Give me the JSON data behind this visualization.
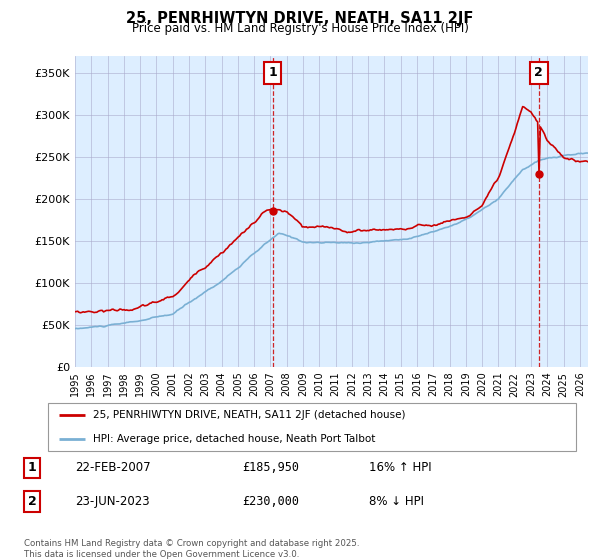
{
  "title": "25, PENRHIWTYN DRIVE, NEATH, SA11 2JF",
  "subtitle": "Price paid vs. HM Land Registry's House Price Index (HPI)",
  "ylabel_ticks": [
    "£0",
    "£50K",
    "£100K",
    "£150K",
    "£200K",
    "£250K",
    "£300K",
    "£350K"
  ],
  "ytick_vals": [
    0,
    50000,
    100000,
    150000,
    200000,
    250000,
    300000,
    350000
  ],
  "ylim": [
    0,
    370000
  ],
  "xlim_start": 1995.0,
  "xlim_end": 2026.5,
  "transaction1": {
    "date_num": 2007.13,
    "price": 185950,
    "label": "1",
    "pct": "16%",
    "dir": "↑",
    "date_str": "22-FEB-2007"
  },
  "transaction2": {
    "date_num": 2023.48,
    "price": 230000,
    "label": "2",
    "pct": "8%",
    "dir": "↓",
    "date_str": "23-JUN-2023"
  },
  "legend_line1": "25, PENRHIWTYN DRIVE, NEATH, SA11 2JF (detached house)",
  "legend_line2": "HPI: Average price, detached house, Neath Port Talbot",
  "footer": "Contains HM Land Registry data © Crown copyright and database right 2025.\nThis data is licensed under the Open Government Licence v3.0.",
  "table_row1": [
    "1",
    "22-FEB-2007",
    "£185,950",
    "16% ↑ HPI"
  ],
  "table_row2": [
    "2",
    "23-JUN-2023",
    "£230,000",
    "8% ↓ HPI"
  ],
  "price_line_color": "#cc0000",
  "hpi_line_color": "#7ab0d4",
  "grid_color": "#cccccc",
  "bg_color": "#ffffff",
  "chart_bg_color": "#ddeeff",
  "vline_color": "#cc0000"
}
